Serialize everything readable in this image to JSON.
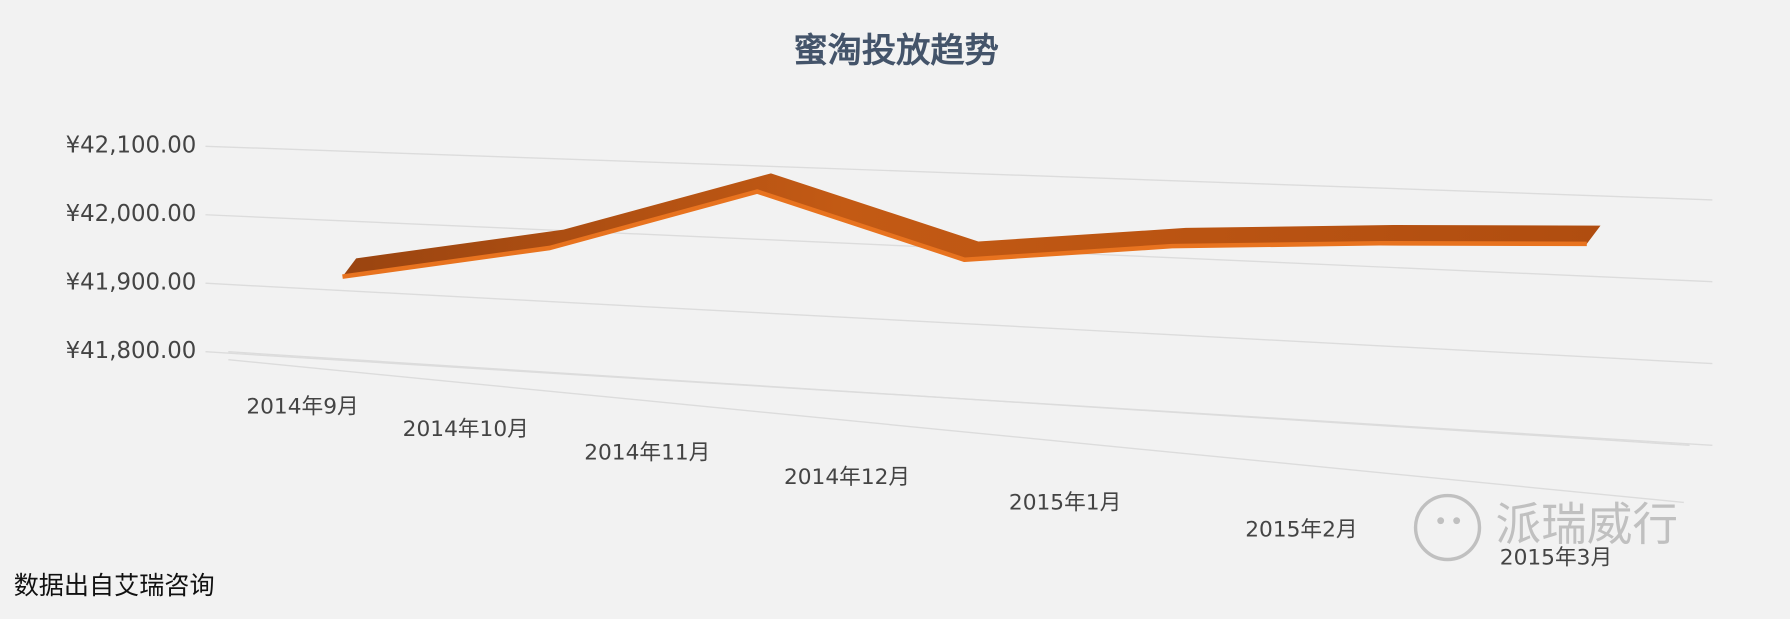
{
  "chart_data": {
    "type": "line3d",
    "title": "蜜淘投放趋势",
    "categories": [
      "2014年9月",
      "2014年10月",
      "2014年11月",
      "2014年12月",
      "2015年1月",
      "2015年2月",
      "2015年3月"
    ],
    "series": [
      {
        "name": "蜜淘投放",
        "color": "#e8731f",
        "values": [
          41920,
          41975,
          42065,
          41985,
          42015,
          42030,
          42040
        ]
      }
    ],
    "ylim": [
      41800,
      42100
    ],
    "yticks": [
      {
        "value": 41800,
        "label": "¥41,800.00"
      },
      {
        "value": 41900,
        "label": "¥41,900.00"
      },
      {
        "value": 42000,
        "label": "¥42,000.00"
      },
      {
        "value": 42100,
        "label": "¥42,100.00"
      }
    ],
    "grid": true,
    "annotations": [
      "派瑞威行",
      "数据出自艾瑞咨询"
    ]
  }
}
